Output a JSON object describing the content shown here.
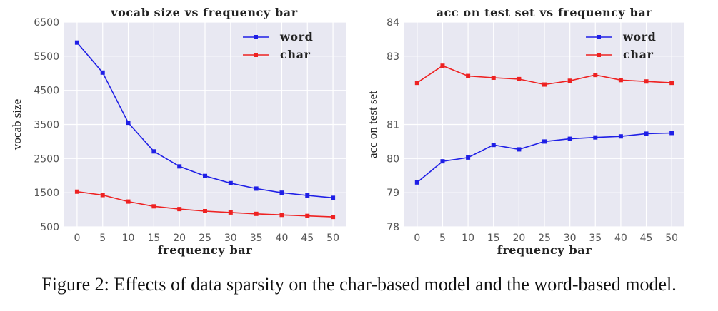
{
  "figure": {
    "caption": "Figure 2: Effects of data sparsity on the char-based model and the word-based model.",
    "colors": {
      "plot_background": "#e8e8f2",
      "grid": "#ffffff",
      "word": "#1f1fe6",
      "char": "#ee2222"
    }
  },
  "chart_data": [
    {
      "type": "line",
      "title": "vocab size vs frequency bar",
      "xlabel": "frequency bar",
      "ylabel": "vocab size",
      "x": [
        0,
        5,
        10,
        15,
        20,
        25,
        30,
        35,
        40,
        45,
        50
      ],
      "xticks": [
        "0",
        "5",
        "10",
        "15",
        "20",
        "25",
        "30",
        "35",
        "40",
        "45",
        "50"
      ],
      "xlim": [
        -2.5,
        52.5
      ],
      "yticks": [
        "500",
        "1500",
        "2500",
        "3500",
        "4500",
        "5500",
        "6500"
      ],
      "ytick_values": [
        500,
        1500,
        2500,
        3500,
        4500,
        5500,
        6500
      ],
      "ylim": [
        500,
        6500
      ],
      "legend_position": "top-right",
      "series": [
        {
          "name": "word",
          "color": "#1f1fe6",
          "values": [
            5900,
            5020,
            3550,
            2710,
            2270,
            1990,
            1780,
            1620,
            1500,
            1420,
            1350
          ]
        },
        {
          "name": "char",
          "color": "#ee2222",
          "values": [
            1530,
            1430,
            1240,
            1100,
            1020,
            960,
            920,
            880,
            850,
            820,
            790
          ]
        }
      ]
    },
    {
      "type": "line",
      "title": "acc on test set vs frequency bar",
      "xlabel": "frequency bar",
      "ylabel": "acc on test set",
      "x": [
        0,
        5,
        10,
        15,
        20,
        25,
        30,
        35,
        40,
        45,
        50
      ],
      "xticks": [
        "0",
        "5",
        "10",
        "15",
        "20",
        "25",
        "30",
        "35",
        "40",
        "45",
        "50"
      ],
      "xlim": [
        -2.5,
        52.5
      ],
      "yticks": [
        "78",
        "79",
        "80",
        "81",
        "83",
        "84"
      ],
      "ytick_values": [
        78,
        79,
        80,
        81,
        83,
        84
      ],
      "ylim": [
        78,
        84
      ],
      "legend_position": "top-right",
      "series": [
        {
          "name": "word",
          "color": "#1f1fe6",
          "values": [
            79.3,
            79.92,
            80.03,
            80.4,
            80.27,
            80.5,
            80.58,
            80.62,
            80.65,
            80.73,
            80.75
          ]
        },
        {
          "name": "char",
          "color": "#ee2222",
          "values": [
            82.22,
            82.72,
            82.42,
            82.37,
            82.33,
            82.17,
            82.28,
            82.45,
            82.3,
            82.26,
            82.22
          ]
        }
      ]
    }
  ]
}
